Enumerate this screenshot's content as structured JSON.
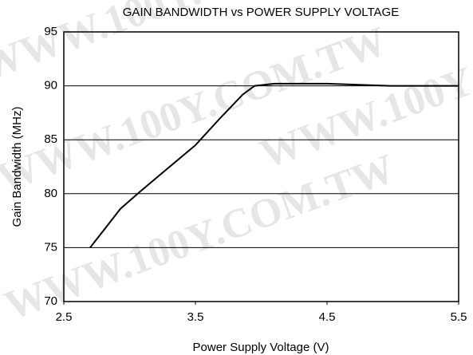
{
  "chart_data": {
    "type": "line",
    "title": "GAIN BANDWIDTH vs POWER SUPPLY VOLTAGE",
    "x_label": "Power Supply Voltage (V)",
    "y_label": "Gain Bandwidth (MHz)",
    "watermark": "WWW.100Y.COM.TW",
    "x": [
      2.7,
      2.93,
      3.08,
      3.26,
      3.5,
      3.68,
      3.86,
      3.95,
      4.1,
      4.5,
      4.98,
      5.5
    ],
    "series": [
      {
        "name": "Gain Bandwidth",
        "color": "#000000",
        "values": [
          75,
          78.6,
          80.2,
          82.05,
          84.5,
          86.9,
          89.2,
          90.0,
          90.2,
          90.2,
          90.0,
          90.0
        ]
      }
    ],
    "xlim": [
      2.5,
      5.5
    ],
    "xticks": [
      2.5,
      3.5,
      4.5,
      5.5
    ],
    "ylim": [
      70,
      95
    ],
    "yticks": [
      70,
      75,
      80,
      85,
      90,
      95
    ],
    "grid": true
  }
}
